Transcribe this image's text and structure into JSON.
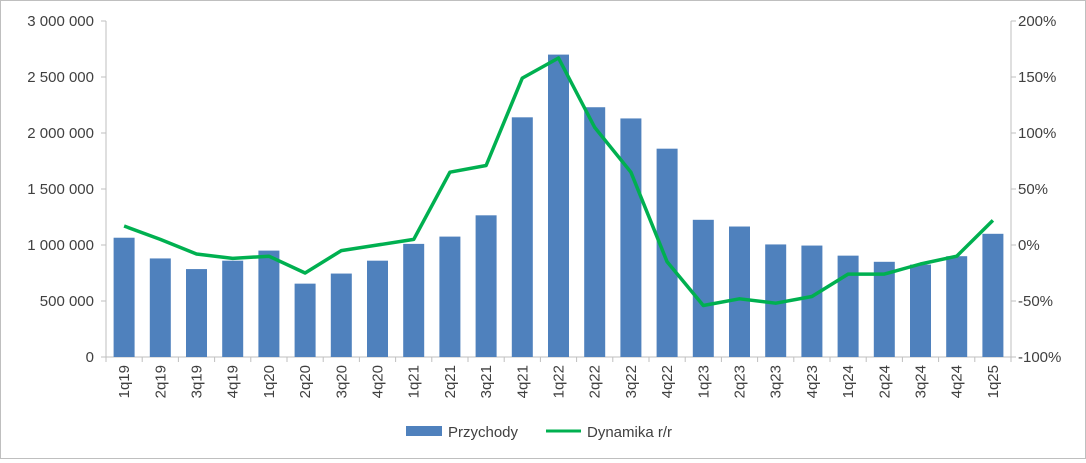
{
  "chart_data": {
    "type": "bar",
    "categories": [
      "1q19",
      "2q19",
      "3q19",
      "4q19",
      "1q20",
      "2q20",
      "3q20",
      "4q20",
      "1q21",
      "2q21",
      "3q21",
      "4q21",
      "1q22",
      "2q22",
      "3q22",
      "4q22",
      "1q23",
      "2q23",
      "3q23",
      "4q23",
      "1q24",
      "2q24",
      "3q24",
      "4q24",
      "1q25"
    ],
    "series": [
      {
        "name": "Przychody",
        "type": "bar",
        "axis": "left",
        "color": "#4f81bd",
        "values": [
          1065000,
          880000,
          785000,
          860000,
          950000,
          655000,
          745000,
          860000,
          1010000,
          1075000,
          1265000,
          2140000,
          2700000,
          2230000,
          2130000,
          1860000,
          1225000,
          1165000,
          1005000,
          995000,
          905000,
          850000,
          825000,
          900000,
          1100000
        ]
      },
      {
        "name": "Dynamika r/r",
        "type": "line",
        "axis": "right",
        "color": "#00b050",
        "values": [
          17,
          5,
          -8,
          -12,
          -10,
          -25,
          -5,
          0,
          5,
          65,
          71,
          149,
          167,
          105,
          65,
          -15,
          -54,
          -48,
          -52,
          -46,
          -26,
          -26,
          -17,
          -10,
          22
        ]
      }
    ],
    "y_left": {
      "ylim": [
        0,
        3000000
      ],
      "ticks": [
        0,
        500000,
        1000000,
        1500000,
        2000000,
        2500000,
        3000000
      ],
      "tick_labels": [
        "0",
        "500 000",
        "1 000 000",
        "1 500 000",
        "2 000 000",
        "2 500 000",
        "3 000 000"
      ]
    },
    "y_right": {
      "ylim": [
        -100,
        200
      ],
      "ticks": [
        -100,
        -50,
        0,
        50,
        100,
        150,
        200
      ],
      "tick_labels": [
        "-100%",
        "-50%",
        "0%",
        "50%",
        "100%",
        "150%",
        "200%"
      ]
    },
    "grid": false,
    "legend_position": "bottom-center",
    "xlabel": "",
    "ylabel": ""
  }
}
